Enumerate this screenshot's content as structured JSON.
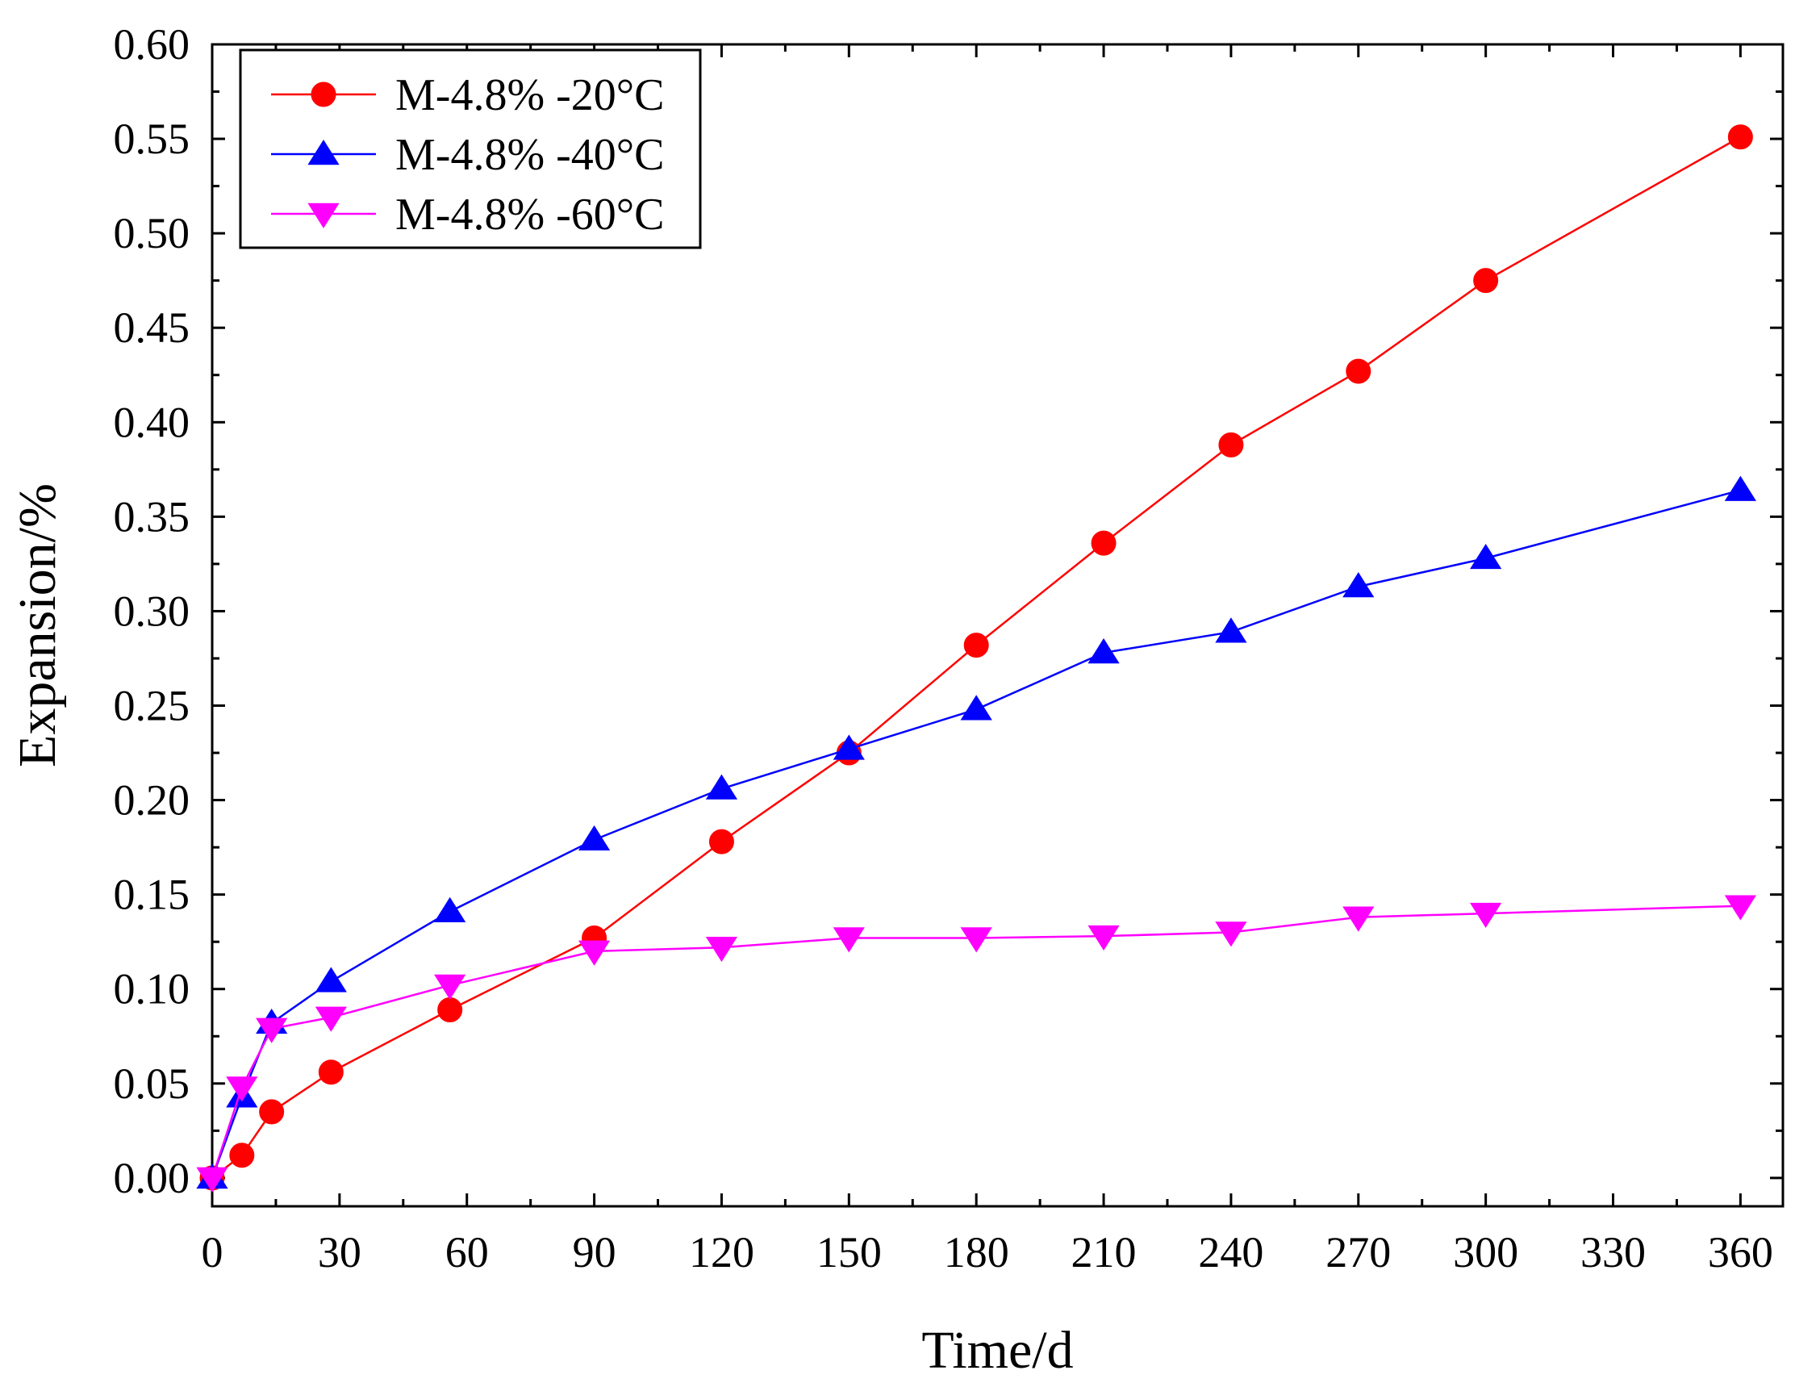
{
  "chart_data": {
    "type": "line",
    "title": "",
    "xlabel": "Time/d",
    "ylabel": "Expansion/%",
    "xlim": [
      0,
      370
    ],
    "ylim": [
      -0.015,
      0.6
    ],
    "xticks": [
      0,
      30,
      60,
      90,
      120,
      150,
      180,
      210,
      240,
      270,
      300,
      330,
      360
    ],
    "xtick_labels": [
      "0",
      "30",
      "60",
      "90",
      "120",
      "150",
      "180",
      "210",
      "240",
      "270",
      "300",
      "330",
      "360"
    ],
    "yticks": [
      0.0,
      0.05,
      0.1,
      0.15,
      0.2,
      0.25,
      0.3,
      0.35,
      0.4,
      0.45,
      0.5,
      0.55,
      0.6
    ],
    "ytick_labels": [
      "0.00",
      "0.05",
      "0.10",
      "0.15",
      "0.20",
      "0.25",
      "0.30",
      "0.35",
      "0.40",
      "0.45",
      "0.50",
      "0.55",
      "0.60"
    ],
    "grid": false,
    "legend_position": "top-left",
    "series": [
      {
        "name": "M-4.8% -20°C",
        "color": "#ff0000",
        "marker": "circle",
        "x": [
          0,
          7,
          14,
          28,
          56,
          90,
          120,
          150,
          180,
          210,
          240,
          270,
          300,
          360
        ],
        "y": [
          0.0,
          0.012,
          0.035,
          0.056,
          0.089,
          0.127,
          0.178,
          0.225,
          0.282,
          0.336,
          0.388,
          0.427,
          0.475,
          0.551
        ]
      },
      {
        "name": "M-4.8% -40°C",
        "color": "#0000ff",
        "marker": "triangle-up",
        "x": [
          0,
          7,
          14,
          28,
          56,
          90,
          120,
          150,
          180,
          210,
          240,
          270,
          300,
          360
        ],
        "y": [
          0.0,
          0.043,
          0.082,
          0.104,
          0.141,
          0.179,
          0.206,
          0.227,
          0.248,
          0.278,
          0.289,
          0.313,
          0.328,
          0.364
        ]
      },
      {
        "name": "M-4.8% -60°C",
        "color": "#ff00ff",
        "marker": "triangle-down",
        "x": [
          0,
          7,
          14,
          28,
          56,
          90,
          120,
          150,
          180,
          210,
          240,
          270,
          300,
          360
        ],
        "y": [
          0.0,
          0.048,
          0.079,
          0.085,
          0.102,
          0.12,
          0.122,
          0.127,
          0.127,
          0.128,
          0.13,
          0.138,
          0.14,
          0.144
        ]
      }
    ]
  }
}
